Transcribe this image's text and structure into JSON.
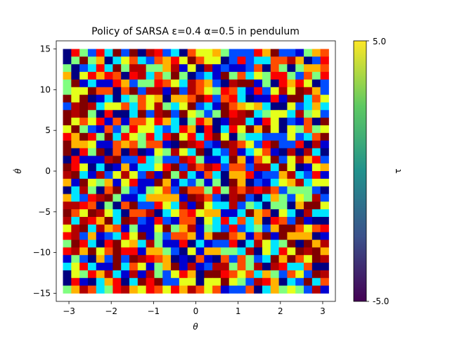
{
  "chart_data": {
    "type": "heatmap",
    "title": "Policy of SARSA ε=0.4 α=0.5 in pendulum",
    "xlabel": "θ",
    "ylabel": "θ̇",
    "xlim": [
      -3.3,
      3.3
    ],
    "ylim": [
      -16,
      16
    ],
    "x_range": [
      -3.1416,
      3.1416
    ],
    "y_range": [
      -15.0,
      15.0
    ],
    "x_ticks": [
      -3,
      -2,
      -1,
      0,
      1,
      2,
      3
    ],
    "y_ticks": [
      -15,
      -10,
      -5,
      0,
      5,
      10,
      15
    ],
    "grid_cols": 32,
    "grid_rows": 32,
    "colormap_main": "jet",
    "colorbar": {
      "label": "τ",
      "colormap": "viridis",
      "min_label": "-5.0",
      "max_label": "5.0",
      "range": [
        -5.0,
        5.0
      ]
    },
    "grid": false,
    "values_note": "32x32 torque grid with values in [-5, 5], ordered from the top row (θ̇ = 15) to the bottom row (θ̇ = -15); read approximately from the cell colours"
  }
}
